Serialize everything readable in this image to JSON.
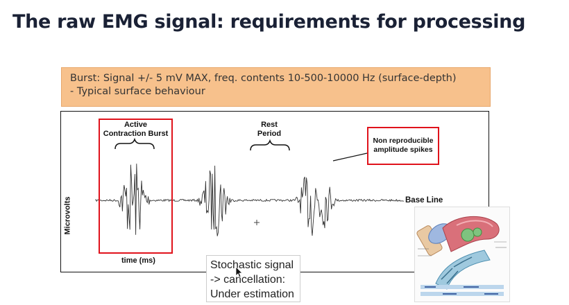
{
  "slide": {
    "title": "The raw EMG signal: requirements for processing",
    "banner": {
      "line1": "Burst: Signal +/- 5 mV MAX, freq. contents 10-500-10000 Hz (surface-depth)",
      "line2": "- Typical surface behaviour"
    },
    "figure": {
      "ylabel": "Microvolts",
      "xlabel": "time (ms)",
      "active_line1": "Active",
      "active_line2": "Contraction Burst",
      "rest_line1": "Rest",
      "rest_line2": "Period",
      "spikes_line1": "Non reproducible",
      "spikes_line2": "amplitude spikes",
      "baseline": "Base Line"
    },
    "annotation": {
      "line1": "Stochastic signal",
      "line2": "-> cancellation:",
      "line3": "Under estimation"
    },
    "colors": {
      "title": "#1a2135",
      "banner_bg": "#f7c18c",
      "highlight_red": "#e0121b"
    }
  }
}
